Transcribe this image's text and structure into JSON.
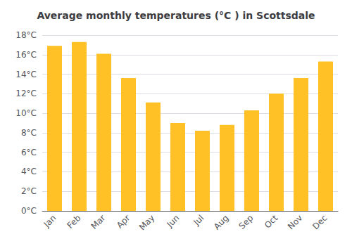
{
  "chart_data": {
    "type": "bar",
    "title": "Average monthly temperatures (°C ) in Scottsdale",
    "categories": [
      "Jan",
      "Feb",
      "Mar",
      "Apr",
      "May",
      "Jun",
      "Jul",
      "Aug",
      "Sep",
      "Oct",
      "Nov",
      "Dec"
    ],
    "values": [
      16.9,
      17.3,
      16.1,
      13.6,
      11.1,
      9.0,
      8.2,
      8.8,
      10.3,
      12.0,
      13.6,
      15.3
    ],
    "color": "#FFC125",
    "ylim": [
      0,
      18
    ],
    "yticks": [
      {
        "value": 0,
        "label": "0°C"
      },
      {
        "value": 2,
        "label": "2°C"
      },
      {
        "value": 4,
        "label": "4°C"
      },
      {
        "value": 6,
        "label": "6°C"
      },
      {
        "value": 8,
        "label": "8°C"
      },
      {
        "value": 10,
        "label": "10°C"
      },
      {
        "value": 12,
        "label": "12°C"
      },
      {
        "value": 14,
        "label": "14°C"
      },
      {
        "value": 16,
        "label": "16°C"
      },
      {
        "value": 18,
        "label": "18°C"
      }
    ],
    "grid": true
  }
}
